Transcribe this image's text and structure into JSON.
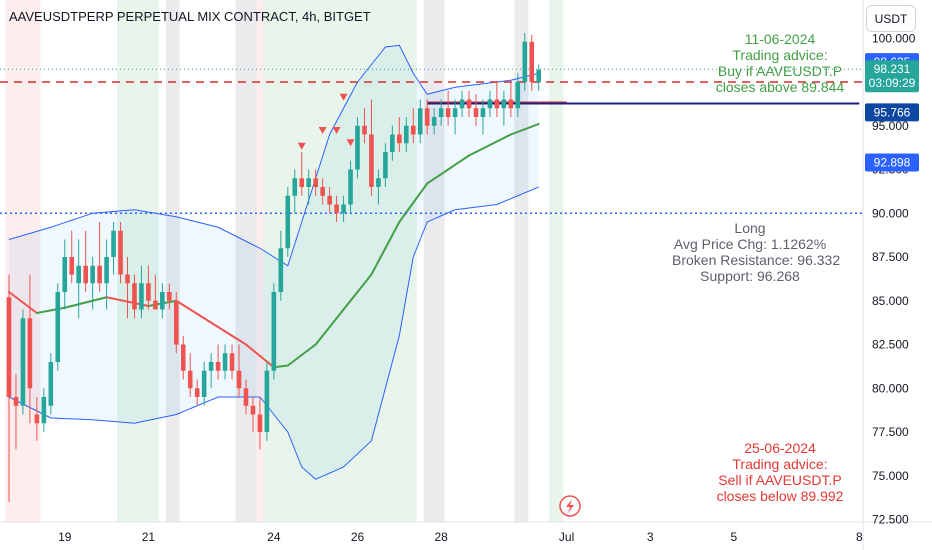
{
  "header": {
    "title": "AAVEUSDTPERP PERPETUAL MIX CONTRACT, 4h, BITGET"
  },
  "currency_button": "USDT",
  "annotations": {
    "buy": {
      "date": "11-06-2024",
      "line1": "Trading advice:",
      "line2": "Buy if AAVEUSDT.P",
      "line3": "closes above 89.844"
    },
    "long": {
      "title": "Long",
      "line1": "Avg Price Chg: 1.1262%",
      "line2": "Broken Resistance: 96.332",
      "line3": "Support: 96.268"
    },
    "sell": {
      "date": "25-06-2024",
      "line1": "Trading advice:",
      "line2": "Sell if AAVEUSDT.P",
      "line3": "closes below 89.992"
    }
  },
  "price_tags": [
    {
      "text": "98.635",
      "price": 98.635,
      "color": "#2962ff"
    },
    {
      "text": "98.231",
      "sub": "03:09:29",
      "price": 98.231,
      "color": "#26a69a"
    },
    {
      "text": "95.766",
      "price": 95.766,
      "color": "#0d47a1"
    },
    {
      "text": "92.898",
      "price": 92.898,
      "color": "#2962ff"
    }
  ],
  "colors": {
    "up": "#26a69a",
    "down": "#ef5350",
    "band": "#2962ff",
    "basis": "#43a047",
    "resistance": "#d32f2f",
    "support": "#1a237e"
  },
  "chart_data": {
    "type": "candlestick",
    "interval": "4h",
    "y_axis": {
      "range": [
        71.5,
        101.5
      ],
      "ticks": [
        72.5,
        75.0,
        77.5,
        80.0,
        82.5,
        85.0,
        87.5,
        90.0,
        92.5,
        95.0,
        97.5,
        100.0
      ],
      "tick_labels": [
        "72.500",
        "75.000",
        "77.500",
        "80.000",
        "82.500",
        "85.000",
        "87.500",
        "90.000",
        "92.500",
        "95.000",
        "97.500",
        "100.000"
      ]
    },
    "x_axis": {
      "ticks": [
        {
          "label": "19",
          "bar": 8
        },
        {
          "label": "21",
          "bar": 20
        },
        {
          "label": "24",
          "bar": 38
        },
        {
          "label": "26",
          "bar": 50
        },
        {
          "label": "28",
          "bar": 62
        },
        {
          "label": "Jul",
          "bar": 80
        },
        {
          "label": "3",
          "bar": 92
        },
        {
          "label": "5",
          "bar": 104
        },
        {
          "label": "8",
          "bar": 122
        }
      ]
    },
    "candles": [
      [
        85.2,
        86.5,
        73.5,
        79.5
      ],
      [
        79.5,
        80.8,
        76.5,
        79.0
      ],
      [
        79.0,
        84.5,
        78.5,
        84.0
      ],
      [
        84.0,
        86.5,
        78.0,
        80.0
      ],
      [
        78.5,
        79.5,
        77.0,
        78.0
      ],
      [
        78.0,
        80.0,
        77.5,
        79.5
      ],
      [
        79.0,
        82.0,
        78.5,
        81.5
      ],
      [
        81.5,
        86.0,
        81.0,
        85.5
      ],
      [
        85.5,
        88.5,
        84.5,
        87.5
      ],
      [
        87.5,
        89.0,
        86.0,
        86.5
      ],
      [
        86.0,
        88.5,
        84.0,
        87.0
      ],
      [
        87.0,
        89.0,
        85.5,
        86.0
      ],
      [
        86.0,
        87.5,
        84.5,
        87.0
      ],
      [
        87.0,
        89.5,
        85.5,
        86.0
      ],
      [
        86.0,
        88.5,
        84.5,
        87.5
      ],
      [
        87.5,
        89.5,
        86.5,
        89.0
      ],
      [
        89.0,
        89.5,
        86.0,
        86.5
      ],
      [
        86.5,
        87.5,
        84.0,
        86.0
      ],
      [
        86.0,
        86.5,
        84.0,
        84.5
      ],
      [
        84.5,
        87.0,
        84.0,
        86.0
      ],
      [
        86.0,
        87.0,
        84.5,
        85.0
      ],
      [
        85.0,
        86.5,
        84.5,
        84.5
      ],
      [
        84.5,
        86.0,
        84.0,
        85.5
      ],
      [
        85.5,
        86.0,
        84.5,
        85.0
      ],
      [
        85.0,
        85.5,
        82.0,
        82.5
      ],
      [
        82.5,
        83.0,
        80.5,
        81.0
      ],
      [
        81.0,
        82.0,
        79.5,
        80.0
      ],
      [
        80.0,
        80.5,
        79.0,
        79.5
      ],
      [
        79.5,
        81.5,
        79.0,
        81.0
      ],
      [
        81.0,
        82.0,
        80.0,
        81.5
      ],
      [
        81.5,
        82.5,
        80.5,
        81.0
      ],
      [
        81.0,
        82.5,
        80.5,
        82.0
      ],
      [
        82.0,
        82.5,
        80.5,
        81.0
      ],
      [
        81.0,
        82.5,
        79.5,
        80.0
      ],
      [
        80.0,
        80.5,
        78.5,
        79.0
      ],
      [
        79.0,
        79.5,
        77.5,
        78.5
      ],
      [
        78.5,
        79.5,
        76.5,
        77.5
      ],
      [
        77.5,
        81.5,
        77.0,
        81.0
      ],
      [
        81.0,
        86.0,
        80.5,
        85.5
      ],
      [
        85.5,
        89.0,
        85.0,
        88.0
      ],
      [
        88.0,
        91.5,
        87.5,
        91.0
      ],
      [
        91.0,
        92.5,
        90.0,
        92.0
      ],
      [
        92.0,
        93.5,
        91.0,
        91.5
      ],
      [
        91.5,
        92.5,
        90.5,
        92.0
      ],
      [
        92.0,
        92.5,
        91.0,
        91.5
      ],
      [
        91.5,
        92.0,
        90.5,
        91.0
      ],
      [
        91.0,
        91.5,
        90.0,
        90.5
      ],
      [
        90.5,
        91.0,
        89.5,
        90.0
      ],
      [
        90.0,
        91.0,
        89.5,
        90.5
      ],
      [
        90.5,
        93.0,
        90.0,
        92.5
      ],
      [
        92.5,
        95.5,
        92.0,
        95.0
      ],
      [
        95.0,
        96.0,
        94.0,
        94.5
      ],
      [
        94.5,
        96.5,
        91.0,
        91.5
      ],
      [
        91.5,
        92.5,
        90.5,
        92.0
      ],
      [
        92.0,
        94.0,
        91.5,
        93.5
      ],
      [
        93.5,
        95.0,
        93.0,
        94.5
      ],
      [
        94.5,
        95.5,
        93.5,
        94.0
      ],
      [
        94.0,
        95.5,
        93.5,
        95.0
      ],
      [
        95.0,
        96.0,
        94.0,
        94.5
      ],
      [
        94.5,
        96.5,
        94.0,
        96.0
      ],
      [
        96.0,
        96.5,
        94.5,
        95.0
      ],
      [
        95.0,
        96.0,
        94.5,
        95.5
      ],
      [
        95.5,
        96.5,
        95.0,
        96.0
      ],
      [
        96.0,
        97.0,
        95.0,
        95.5
      ],
      [
        95.5,
        96.5,
        94.5,
        96.0
      ],
      [
        96.0,
        97.0,
        95.5,
        96.5
      ],
      [
        96.5,
        97.0,
        95.5,
        96.0
      ],
      [
        96.0,
        96.8,
        95.0,
        95.5
      ],
      [
        95.5,
        96.5,
        94.5,
        96.0
      ],
      [
        96.0,
        97.0,
        95.5,
        96.5
      ],
      [
        96.5,
        97.5,
        95.5,
        96.0
      ],
      [
        96.0,
        97.0,
        95.0,
        96.5
      ],
      [
        96.5,
        97.5,
        95.5,
        96.0
      ],
      [
        96.0,
        98.0,
        95.5,
        97.5
      ],
      [
        97.5,
        100.3,
        97.0,
        99.8
      ],
      [
        99.8,
        100.2,
        97.0,
        97.5
      ],
      [
        97.5,
        98.5,
        97.0,
        98.2
      ]
    ],
    "bollinger": {
      "upper": [
        [
          0,
          88.5
        ],
        [
          6,
          89.2
        ],
        [
          12,
          90.0
        ],
        [
          18,
          90.2
        ],
        [
          24,
          89.8
        ],
        [
          30,
          89.2
        ],
        [
          36,
          88.0
        ],
        [
          40,
          87.0
        ],
        [
          42,
          89.5
        ],
        [
          46,
          94.5
        ],
        [
          50,
          97.5
        ],
        [
          54,
          99.5
        ],
        [
          56,
          99.6
        ],
        [
          58,
          98.0
        ],
        [
          60,
          96.8
        ],
        [
          64,
          97.2
        ],
        [
          72,
          97.6
        ],
        [
          78,
          98.2
        ],
        [
          80,
          99.8
        ],
        [
          81,
          101.0
        ]
      ],
      "lower": [
        [
          0,
          79.5
        ],
        [
          6,
          78.3
        ],
        [
          12,
          78.2
        ],
        [
          18,
          78.0
        ],
        [
          24,
          78.5
        ],
        [
          30,
          79.5
        ],
        [
          36,
          79.5
        ],
        [
          40,
          77.5
        ],
        [
          42,
          75.5
        ],
        [
          44,
          74.8
        ],
        [
          48,
          75.5
        ],
        [
          52,
          77.0
        ],
        [
          56,
          83.0
        ],
        [
          58,
          87.5
        ],
        [
          60,
          89.5
        ],
        [
          64,
          90.2
        ],
        [
          70,
          90.5
        ],
        [
          76,
          91.5
        ],
        [
          80,
          92.0
        ],
        [
          81,
          92.9
        ]
      ],
      "basis": [
        [
          0,
          85.5
        ],
        [
          4,
          84.3
        ],
        [
          8,
          84.6
        ],
        [
          14,
          85.2
        ],
        [
          20,
          84.7
        ],
        [
          24,
          85.0
        ],
        [
          28,
          84.0
        ],
        [
          34,
          82.5
        ],
        [
          38,
          81.2
        ],
        [
          40,
          81.3
        ],
        [
          44,
          82.5
        ],
        [
          48,
          84.5
        ],
        [
          52,
          86.5
        ],
        [
          56,
          89.5
        ],
        [
          60,
          91.7
        ],
        [
          66,
          93.3
        ],
        [
          72,
          94.5
        ],
        [
          76,
          95.1
        ],
        [
          81,
          96.0
        ]
      ]
    },
    "levels": [
      {
        "name": "resistance",
        "value": 96.33,
        "from_bar": 60,
        "to_bar": 80
      },
      {
        "name": "support",
        "value": 96.27,
        "from_bar": 60,
        "to_bar": 122
      },
      {
        "name": "trigger_high",
        "value": 97.5,
        "style": "dashed"
      },
      {
        "name": "trigger_low",
        "value": 90.0,
        "style": "dotted"
      },
      {
        "name": "last_price",
        "value": 98.23,
        "style": "dotted"
      }
    ],
    "signals": [
      {
        "bar": 48,
        "price": 96.6
      },
      {
        "bar": 45,
        "price": 94.7
      },
      {
        "bar": 47,
        "price": 94.7
      },
      {
        "bar": 42,
        "price": 93.8
      },
      {
        "bar": 49,
        "price": 94.0
      }
    ],
    "shaded_zones": [
      {
        "from_bar": 0,
        "to_bar": 5,
        "color": "red"
      },
      {
        "from_bar": 16,
        "to_bar": 22,
        "color": "green"
      },
      {
        "from_bar": 36,
        "to_bar": 37,
        "color": "red"
      },
      {
        "from_bar": 37,
        "to_bar": 59,
        "color": "green"
      },
      {
        "from_bar": 78,
        "to_bar": 80,
        "color": "green"
      },
      {
        "from_bar": 23,
        "to_bar": 25,
        "color": "gray"
      },
      {
        "from_bar": 33,
        "to_bar": 36,
        "color": "gray"
      },
      {
        "from_bar": 60,
        "to_bar": 63,
        "color": "gray"
      },
      {
        "from_bar": 73,
        "to_bar": 75,
        "color": "gray"
      }
    ]
  }
}
